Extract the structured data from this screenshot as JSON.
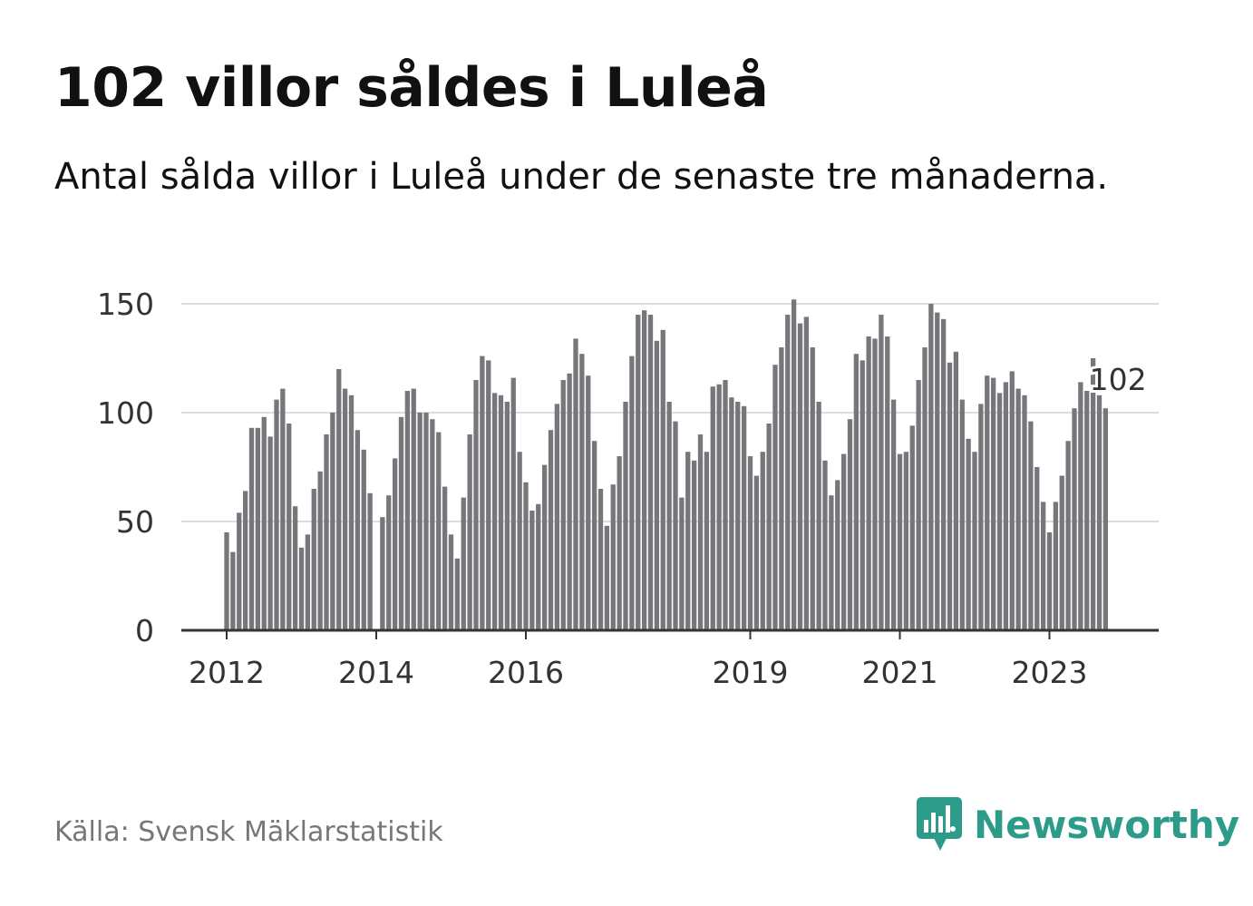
{
  "title": "102 villor såldes i Luleå",
  "subtitle": "Antal sålda villor i Luleå under de senaste tre månaderna.",
  "source": "Källa: Svensk Mäklarstatistik",
  "brand": {
    "name": "Newsworthy",
    "icon": "newsworthy-logo-icon"
  },
  "colors": {
    "bar": "#76767b",
    "highlight": "#1b9a8c",
    "grid": "#dddddd",
    "axis": "#333333",
    "brand": "#2d9b8a"
  },
  "chart_data": {
    "type": "bar",
    "title": "102 villor såldes i Luleå",
    "xlabel": "",
    "ylabel": "",
    "ylim": [
      0,
      150
    ],
    "yticks": [
      0,
      50,
      100,
      150
    ],
    "grid": true,
    "start": "2012-01",
    "xtick_labels": [
      {
        "label": "2012",
        "index": 0
      },
      {
        "label": "2014",
        "index": 24
      },
      {
        "label": "2016",
        "index": 48
      },
      {
        "label": "2019",
        "index": 84
      },
      {
        "label": "2021",
        "index": 108
      },
      {
        "label": "2023",
        "index": 132
      }
    ],
    "values": [
      45,
      36,
      54,
      64,
      93,
      93,
      98,
      89,
      106,
      111,
      95,
      57,
      38,
      44,
      65,
      73,
      90,
      100,
      120,
      111,
      108,
      92,
      83,
      63,
      0,
      52,
      62,
      79,
      98,
      110,
      111,
      100,
      100,
      97,
      91,
      66,
      44,
      33,
      61,
      90,
      115,
      126,
      124,
      109,
      108,
      105,
      116,
      82,
      68,
      55,
      58,
      76,
      92,
      104,
      115,
      118,
      134,
      127,
      117,
      87,
      65,
      48,
      67,
      80,
      105,
      126,
      145,
      147,
      145,
      133,
      138,
      105,
      96,
      61,
      82,
      78,
      90,
      82,
      112,
      113,
      115,
      107,
      105,
      103,
      80,
      71,
      82,
      95,
      122,
      130,
      145,
      152,
      141,
      144,
      130,
      105,
      78,
      62,
      69,
      81,
      97,
      127,
      124,
      135,
      134,
      145,
      135,
      106,
      81,
      82,
      94,
      115,
      130,
      150,
      146,
      143,
      123,
      128,
      106,
      88,
      82,
      104,
      117,
      116,
      109,
      114,
      119,
      111,
      108,
      96,
      75,
      59,
      45,
      59,
      71,
      87,
      102,
      114,
      110,
      125,
      108,
      102
    ],
    "highlight": {
      "index": 143,
      "value": 102,
      "label": "102"
    }
  }
}
